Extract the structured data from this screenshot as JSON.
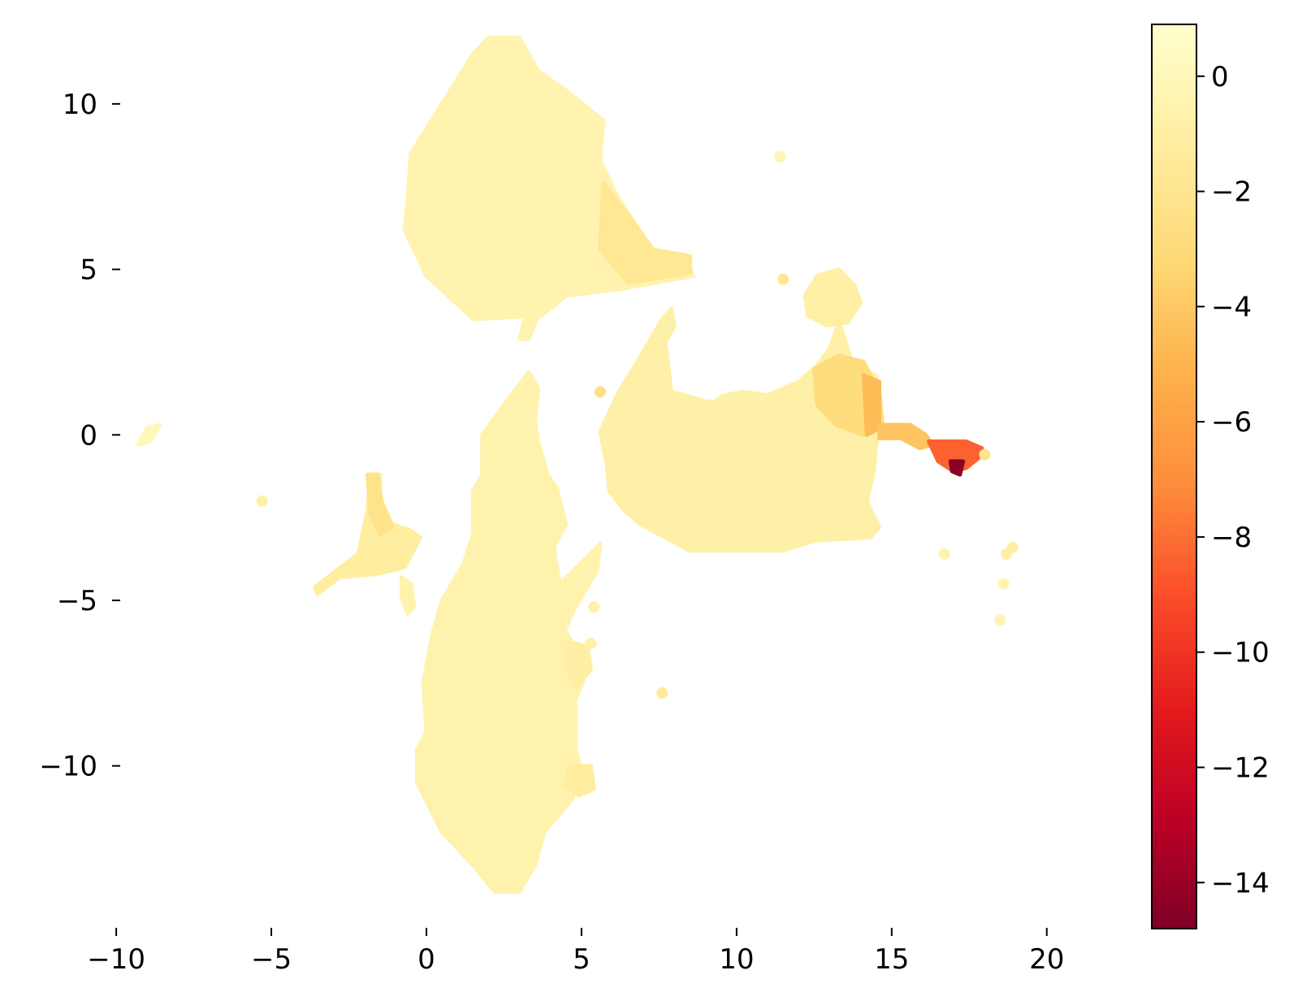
{
  "chart_data": {
    "type": "heatmap",
    "subtype": "hexbin",
    "title": "",
    "xlabel": "",
    "ylabel": "",
    "xlim": [
      -10.5,
      21.5
    ],
    "ylim": [
      -14.5,
      12.5
    ],
    "xticks": [
      -10,
      -5,
      0,
      5,
      10,
      15,
      20
    ],
    "yticks": [
      -10,
      -5,
      0,
      5,
      10
    ],
    "grid": false,
    "frame": false,
    "colormap": "YlOrRd_r",
    "colorbar": {
      "range": [
        -14.8,
        0.9
      ],
      "ticks": [
        0,
        -2,
        -4,
        -6,
        -8,
        -10,
        -12,
        -14
      ],
      "stops": [
        {
          "v": 0.9,
          "c": "#ffffcc"
        },
        {
          "v": -1.2,
          "c": "#ffeda0"
        },
        {
          "v": -3.2,
          "c": "#fed976"
        },
        {
          "v": -5.1,
          "c": "#feb24c"
        },
        {
          "v": -7.1,
          "c": "#fd8d3c"
        },
        {
          "v": -9.0,
          "c": "#fc4e2a"
        },
        {
          "v": -11.0,
          "c": "#e31a1c"
        },
        {
          "v": -12.9,
          "c": "#bd0026"
        },
        {
          "v": -14.8,
          "c": "#800026"
        }
      ]
    },
    "regions": [
      {
        "name": "upper cluster",
        "value": -0.5,
        "polygon": [
          [
            -0.5,
            8.5
          ],
          [
            0.5,
            10
          ],
          [
            1.5,
            11.5
          ],
          [
            2,
            12
          ],
          [
            3,
            12
          ],
          [
            3.6,
            11
          ],
          [
            4.5,
            10.4
          ],
          [
            5.7,
            9.5
          ],
          [
            5.6,
            8.3
          ],
          [
            6.1,
            7.3
          ],
          [
            6.7,
            6.4
          ],
          [
            7.2,
            5.6
          ],
          [
            8.4,
            5.3
          ],
          [
            8.6,
            4.8
          ],
          [
            6.2,
            4.4
          ],
          [
            4.5,
            4.2
          ],
          [
            3.7,
            3.6
          ],
          [
            1.5,
            3.5
          ],
          [
            0.7,
            4.2
          ],
          [
            0,
            4.8
          ],
          [
            -0.7,
            6.2
          ],
          [
            -0.6,
            7.2
          ]
        ]
      },
      {
        "name": "upper cluster right arm",
        "value": -1.8,
        "polygon": [
          [
            5.7,
            7.6
          ],
          [
            6.7,
            6.4
          ],
          [
            7.3,
            5.6
          ],
          [
            8.5,
            5.4
          ],
          [
            8.5,
            4.9
          ],
          [
            6.5,
            4.6
          ],
          [
            5.6,
            5.6
          ]
        ]
      },
      {
        "name": "upper cluster neck",
        "value": -0.5,
        "polygon": [
          [
            3.2,
            3.6
          ],
          [
            3.6,
            3.6
          ],
          [
            3.3,
            2.9
          ],
          [
            3.0,
            2.9
          ]
        ]
      },
      {
        "name": "lower cluster",
        "value": -0.6,
        "polygon": [
          [
            3.3,
            1.9
          ],
          [
            3.6,
            1.4
          ],
          [
            3.5,
            0.4
          ],
          [
            3.6,
            -0.2
          ],
          [
            3.9,
            -1.2
          ],
          [
            4.2,
            -1.6
          ],
          [
            4.5,
            -2.7
          ],
          [
            4.1,
            -3.4
          ],
          [
            4.3,
            -4.5
          ],
          [
            4.4,
            -5.8
          ],
          [
            4.9,
            -6.6
          ],
          [
            5.2,
            -7.1
          ],
          [
            4.8,
            -8
          ],
          [
            4.8,
            -9.5
          ],
          [
            5.0,
            -10.2
          ],
          [
            4.7,
            -11
          ],
          [
            3.8,
            -12
          ],
          [
            3.5,
            -13
          ],
          [
            3.0,
            -13.8
          ],
          [
            2.2,
            -13.8
          ],
          [
            1.5,
            -13
          ],
          [
            0.5,
            -12
          ],
          [
            -0.3,
            -10.5
          ],
          [
            -0.3,
            -9.5
          ],
          [
            0,
            -9
          ],
          [
            -0.1,
            -7.5
          ],
          [
            0.2,
            -6
          ],
          [
            0.5,
            -5
          ],
          [
            1.2,
            -3.9
          ],
          [
            1.5,
            -3
          ],
          [
            1.5,
            -1.7
          ],
          [
            1.8,
            -1.2
          ],
          [
            1.8,
            0
          ],
          [
            2.5,
            0.9
          ]
        ]
      },
      {
        "name": "lower cluster side strand",
        "value": -0.6,
        "polygon": [
          [
            4.0,
            -4.8
          ],
          [
            5.6,
            -3.3
          ],
          [
            5.5,
            -4.1
          ],
          [
            4.8,
            -5.2
          ],
          [
            4.4,
            -6.0
          ]
        ]
      },
      {
        "name": "lower cluster right lobe",
        "value": -1.0,
        "polygon": [
          [
            4.4,
            -6.2
          ],
          [
            5.2,
            -6.4
          ],
          [
            5.3,
            -7.1
          ],
          [
            4.8,
            -7.6
          ],
          [
            4.5,
            -7.0
          ]
        ]
      },
      {
        "name": "lower cluster bottom bump",
        "value": -1.2,
        "polygon": [
          [
            4.6,
            -10.0
          ],
          [
            5.3,
            -10.0
          ],
          [
            5.4,
            -10.7
          ],
          [
            4.9,
            -10.9
          ],
          [
            4.5,
            -10.6
          ]
        ]
      },
      {
        "name": "central body",
        "value": -0.8,
        "polygon": [
          [
            5.6,
            0.1
          ],
          [
            6.2,
            1.3
          ],
          [
            6.8,
            2.2
          ],
          [
            7.3,
            3.0
          ],
          [
            7.6,
            3.5
          ],
          [
            7.9,
            3.8
          ],
          [
            8,
            3.3
          ],
          [
            7.7,
            2.8
          ],
          [
            7.8,
            2.1
          ],
          [
            7.9,
            1.3
          ],
          [
            8.7,
            1.1
          ],
          [
            9.0,
            1.0
          ],
          [
            9.3,
            1.0
          ],
          [
            9.6,
            1.2
          ],
          [
            10.2,
            1.3
          ],
          [
            11.0,
            1.2
          ],
          [
            12.0,
            1.6
          ],
          [
            12.6,
            2.1
          ],
          [
            13.0,
            2.6
          ],
          [
            13.3,
            3.4
          ],
          [
            13.8,
            2.0
          ],
          [
            14.5,
            1.8
          ],
          [
            14.6,
            0.5
          ],
          [
            14.4,
            -1.2
          ],
          [
            14.2,
            -2.0
          ],
          [
            14.6,
            -2.8
          ],
          [
            14.3,
            -3.1
          ],
          [
            12.5,
            -3.2
          ],
          [
            11.5,
            -3.5
          ],
          [
            9.5,
            -3.5
          ],
          [
            8.5,
            -3.5
          ],
          [
            7.7,
            -3.1
          ],
          [
            6.9,
            -2.7
          ],
          [
            6.4,
            -2.3
          ],
          [
            5.9,
            -1.7
          ],
          [
            5.8,
            -0.8
          ]
        ]
      },
      {
        "name": "central body right edge",
        "value": -2.8,
        "polygon": [
          [
            12.5,
            2.0
          ],
          [
            13.3,
            2.4
          ],
          [
            14.1,
            2.2
          ],
          [
            14.6,
            1.3
          ],
          [
            14.7,
            0.3
          ],
          [
            14.1,
            0.0
          ],
          [
            13.2,
            0.3
          ],
          [
            12.6,
            0.9
          ]
        ]
      },
      {
        "name": "central body edge hot",
        "value": -4.6,
        "polygon": [
          [
            14.1,
            1.8
          ],
          [
            14.6,
            1.6
          ],
          [
            14.6,
            0.2
          ],
          [
            14.2,
            0.0
          ]
        ]
      },
      {
        "name": "upper right blob",
        "value": -0.9,
        "polygon": [
          [
            12.2,
            4.2
          ],
          [
            12.6,
            4.8
          ],
          [
            13.3,
            5.0
          ],
          [
            13.8,
            4.5
          ],
          [
            14.0,
            4.0
          ],
          [
            13.6,
            3.4
          ],
          [
            12.9,
            3.3
          ],
          [
            12.3,
            3.6
          ]
        ]
      },
      {
        "name": "tail",
        "value": -4.2,
        "polygon": [
          [
            14.6,
            0.3
          ],
          [
            15.6,
            0.3
          ],
          [
            16.1,
            0.0
          ],
          [
            16.3,
            -0.3
          ],
          [
            15.9,
            -0.4
          ],
          [
            15.3,
            -0.1
          ],
          [
            14.6,
            -0.1
          ]
        ]
      },
      {
        "name": "tail tip",
        "value": -8.4,
        "polygon": [
          [
            16.2,
            -0.2
          ],
          [
            17.4,
            -0.2
          ],
          [
            17.9,
            -0.4
          ],
          [
            17.8,
            -0.7
          ],
          [
            17.4,
            -1.0
          ],
          [
            17.0,
            -1.1
          ],
          [
            16.5,
            -0.8
          ]
        ]
      },
      {
        "name": "tail tip core",
        "value": -14.5,
        "polygon": [
          [
            16.9,
            -0.8
          ],
          [
            17.3,
            -0.8
          ],
          [
            17.2,
            -1.2
          ],
          [
            16.95,
            -1.1
          ]
        ]
      },
      {
        "name": "left fragment",
        "value": -1.2,
        "polygon": [
          [
            -3.6,
            -4.6
          ],
          [
            -2.9,
            -4.1
          ],
          [
            -2.2,
            -3.6
          ],
          [
            -1.9,
            -2.3
          ],
          [
            -1.8,
            -1.2
          ],
          [
            -1.5,
            -1.2
          ],
          [
            -1.5,
            -1.9
          ],
          [
            -1.1,
            -2.7
          ],
          [
            -0.5,
            -2.9
          ],
          [
            -0.2,
            -3.1
          ],
          [
            -0.7,
            -4.0
          ],
          [
            -1.6,
            -4.2
          ],
          [
            -2.8,
            -4.3
          ],
          [
            -3.5,
            -4.8
          ]
        ]
      },
      {
        "name": "left fragment arm",
        "value": -2.2,
        "polygon": [
          [
            -1.9,
            -1.2
          ],
          [
            -1.6,
            -1.2
          ],
          [
            -1.4,
            -2.2
          ],
          [
            -1.1,
            -2.8
          ],
          [
            -1.5,
            -3.0
          ],
          [
            -1.8,
            -2.4
          ]
        ]
      },
      {
        "name": "left fragment drip",
        "value": -0.6,
        "polygon": [
          [
            -0.8,
            -4.3
          ],
          [
            -0.5,
            -4.5
          ],
          [
            -0.4,
            -5.2
          ],
          [
            -0.6,
            -5.4
          ],
          [
            -0.8,
            -4.9
          ]
        ]
      },
      {
        "name": "far left speck",
        "value": 0.0,
        "polygon": [
          [
            -9.3,
            -0.3
          ],
          [
            -9.0,
            0.2
          ],
          [
            -8.6,
            0.3
          ],
          [
            -8.9,
            -0.2
          ]
        ]
      }
    ],
    "points": [
      {
        "x": 11.4,
        "y": 8.4,
        "value": -0.4
      },
      {
        "x": 11.5,
        "y": 4.7,
        "value": -1.8
      },
      {
        "x": 5.6,
        "y": 1.3,
        "value": -2.6
      },
      {
        "x": -5.3,
        "y": -2.0,
        "value": -0.8
      },
      {
        "x": 7.6,
        "y": -7.8,
        "value": -1.4
      },
      {
        "x": 16.7,
        "y": -3.6,
        "value": -0.6
      },
      {
        "x": 18.9,
        "y": -3.4,
        "value": -1.0
      },
      {
        "x": 18.7,
        "y": -3.6,
        "value": -1.0
      },
      {
        "x": 18.6,
        "y": -4.5,
        "value": -0.5
      },
      {
        "x": 18.5,
        "y": -5.6,
        "value": -0.5
      },
      {
        "x": 18.0,
        "y": -0.6,
        "value": -2.2
      },
      {
        "x": 5.4,
        "y": -5.2,
        "value": -0.7
      },
      {
        "x": 5.3,
        "y": -6.3,
        "value": -0.8
      }
    ]
  }
}
